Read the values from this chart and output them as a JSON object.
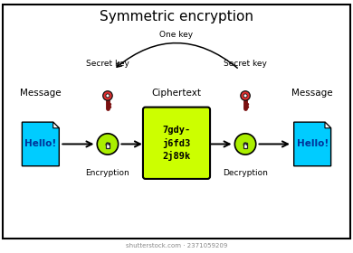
{
  "title": "Symmetric encryption",
  "bg_color": "#ffffff",
  "border_color": "#000000",
  "doc_color": "#00ccff",
  "cipher_bg": "#ccff00",
  "cipher_text": "7gdy-\nj6fd3\n2j89k",
  "circle_color": "#aaee00",
  "lock_color": "#ffffff",
  "key_body_color": "#7a1010",
  "key_head_color": "#e03030",
  "arrow_color": "#000000",
  "label_encryption": "Encryption",
  "label_decryption": "Decryption",
  "label_ciphertext": "Ciphertext",
  "label_message": "Message",
  "label_secret_key_left": "Secret key",
  "label_secret_key_right": "Secret key",
  "label_one_key": "One key",
  "hello_text": "Hello!",
  "watermark": "shutterstock.com · 2371059209",
  "xlim": [
    0,
    10
  ],
  "ylim": [
    0,
    7.2
  ]
}
